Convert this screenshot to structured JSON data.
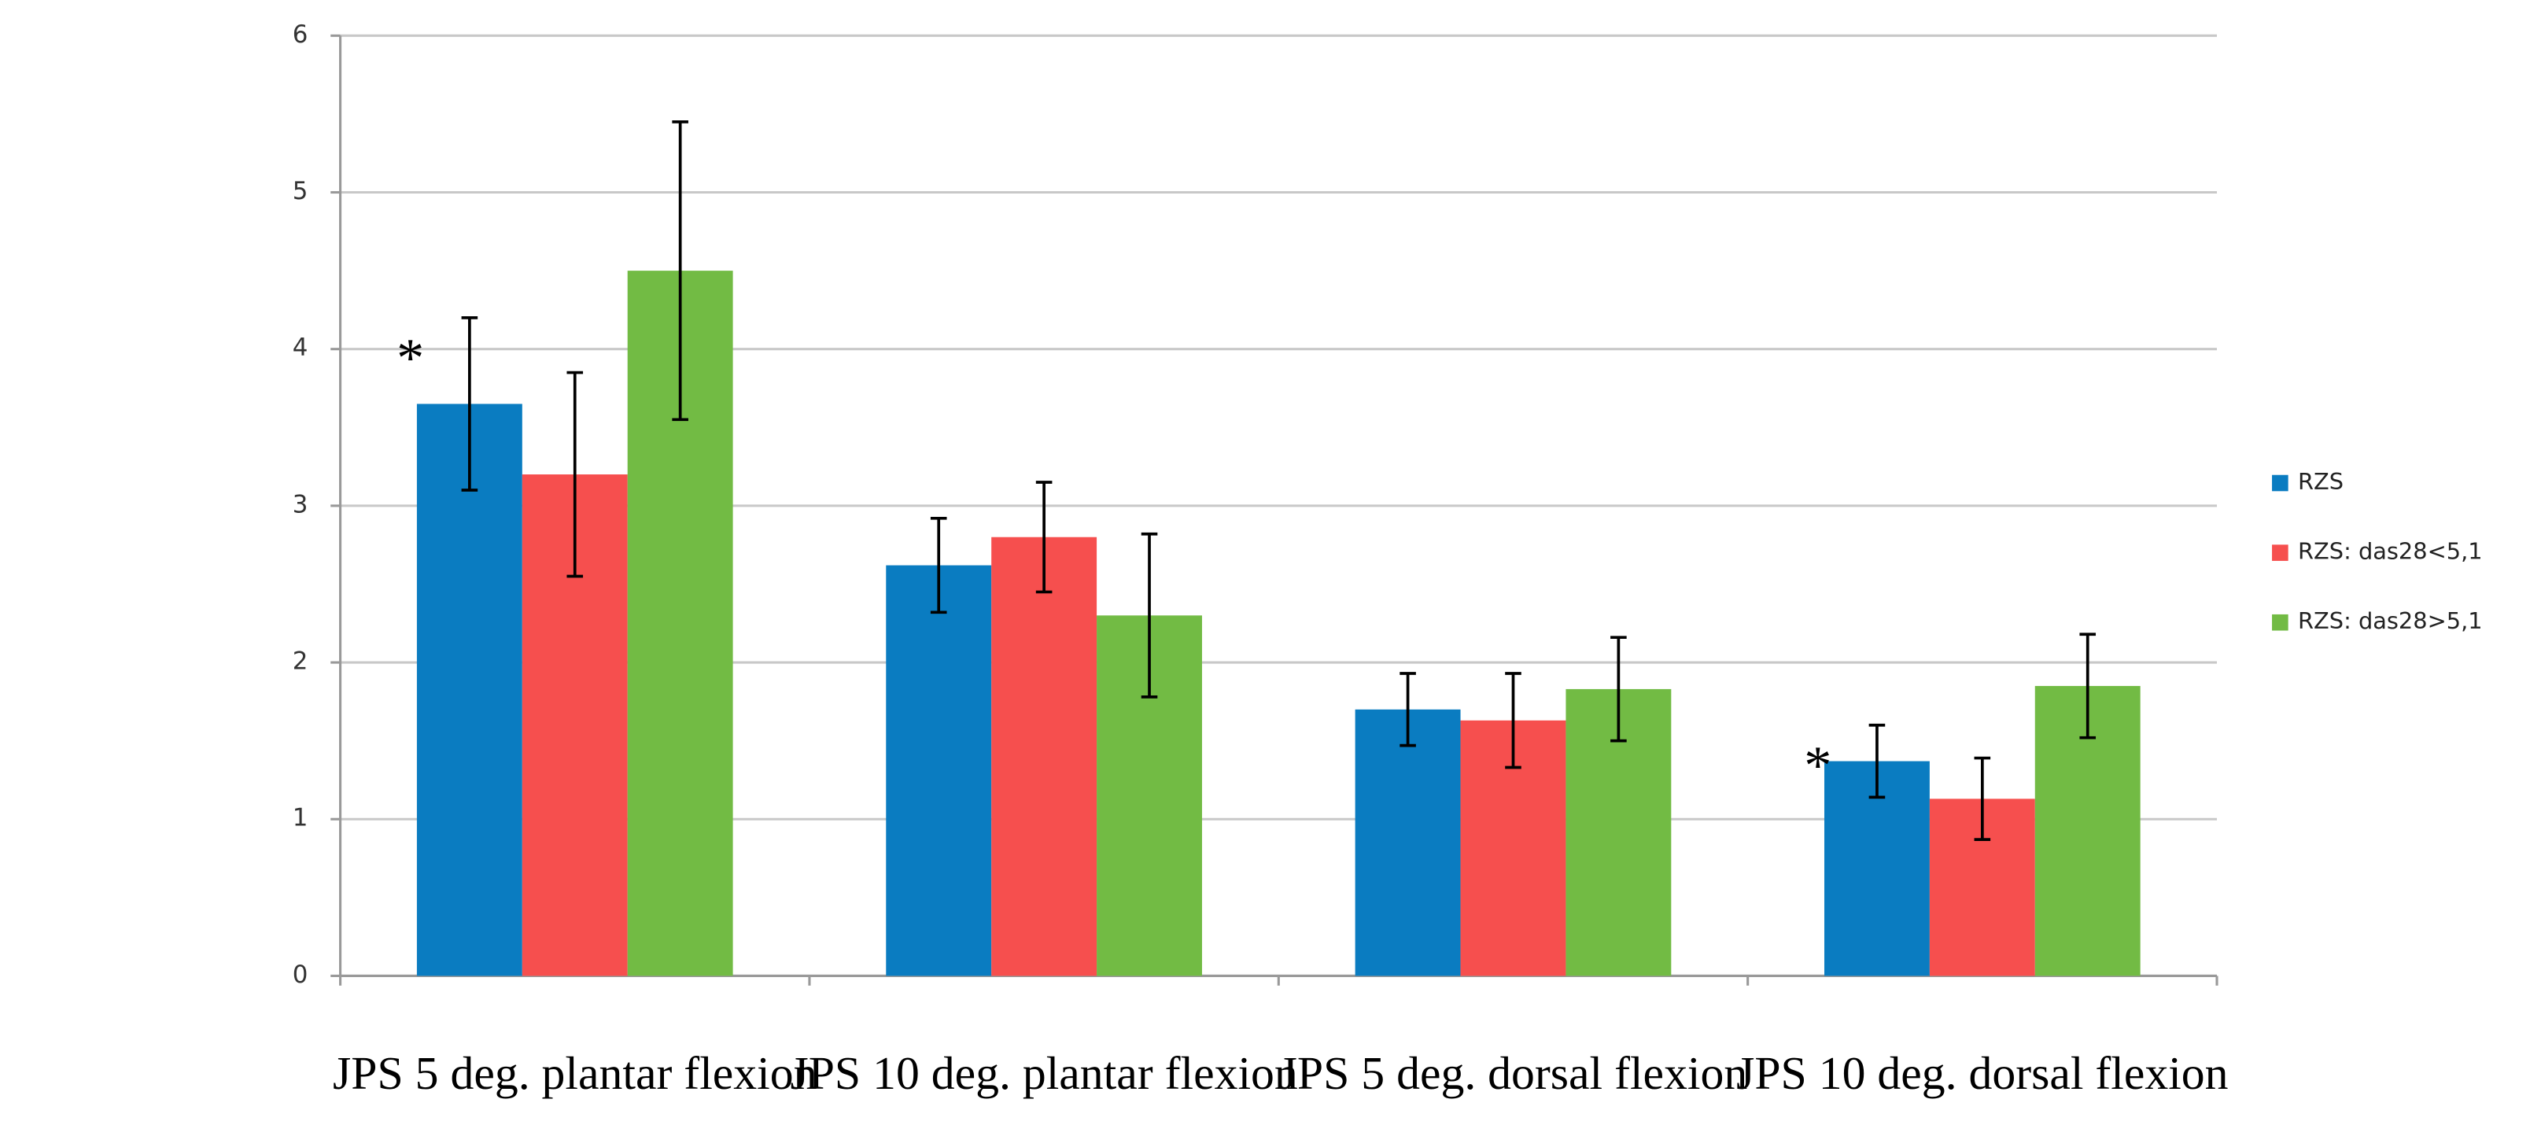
{
  "chart_data": {
    "type": "bar",
    "categories": [
      "JPS 5 deg. plantar flexion",
      "JPS 10 deg. plantar flexion",
      "JPS 5 deg. dorsal flexion",
      "JPS 10 deg. dorsal flexion"
    ],
    "series": [
      {
        "name": "RZS",
        "color": "#0a7cc1",
        "values": [
          3.65,
          2.62,
          1.7,
          1.37
        ],
        "errors": [
          0.55,
          0.3,
          0.23,
          0.23
        ]
      },
      {
        "name": "RZS: das28<5,1",
        "color": "#f64f4e",
        "values": [
          3.2,
          2.8,
          1.63,
          1.13
        ],
        "errors": [
          0.65,
          0.35,
          0.3,
          0.26
        ]
      },
      {
        "name": "RZS: das28>5,1",
        "color": "#72bb44",
        "values": [
          4.5,
          2.3,
          1.83,
          1.85
        ],
        "errors": [
          0.95,
          0.52,
          0.33,
          0.33
        ]
      }
    ],
    "annotations": [
      {
        "text": "*",
        "category": 0
      },
      {
        "text": "*",
        "category": 3
      }
    ],
    "ylim": [
      0,
      6
    ],
    "yticks": [
      0,
      1,
      2,
      3,
      4,
      5,
      6
    ],
    "grid": true,
    "legend": "right"
  }
}
